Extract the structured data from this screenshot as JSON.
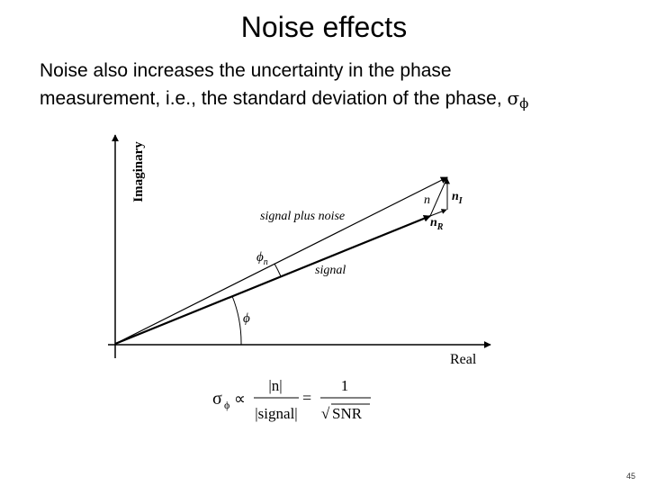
{
  "slide": {
    "title": "Noise effects",
    "body_line1": "Noise also increases the uncertainty in the phase",
    "body_line2": "measurement, i.e., the standard deviation of the phase,",
    "sigma_symbol": "σ",
    "phi_subscript": "ϕ",
    "page_number": "45"
  },
  "diagram": {
    "y_axis_label": "Imaginary",
    "x_axis_label": "Real",
    "signal_plus_noise_label": "signal plus noise",
    "signal_label": "signal",
    "phi_label": "ϕ",
    "phi_n_label": "ϕ",
    "phi_n_sub": "n",
    "n_label": "n",
    "n_I_label": "n",
    "n_I_sub": "I",
    "n_R_label": "n",
    "n_R_sub": "R"
  },
  "formula": {
    "sigma": "σ",
    "phi_sub": "ϕ",
    "proportional": "∝",
    "numerator_left": "|n|",
    "denominator_left": "|signal|",
    "equals": "=",
    "numerator_right": "1",
    "radical": "√",
    "denominator_right": "SNR"
  }
}
